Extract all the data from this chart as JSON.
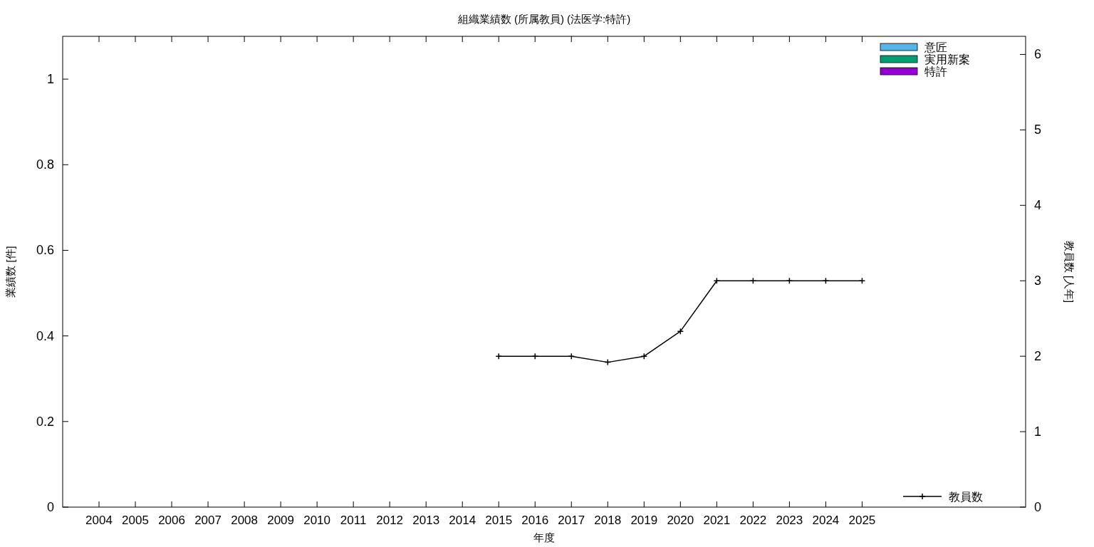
{
  "chart_data": {
    "type": "bar",
    "title": "組織業績数 (所属教員) (法医学:特許)",
    "xlabel": "年度",
    "ylabel": "業績数 [件]",
    "y2label": "教員数 [人年]",
    "x": [
      2004,
      2005,
      2006,
      2007,
      2008,
      2009,
      2010,
      2011,
      2012,
      2013,
      2014,
      2015,
      2016,
      2017,
      2018,
      2019,
      2020,
      2021,
      2022,
      2023,
      2024,
      2025
    ],
    "xlim": [
      2003,
      2029.5
    ],
    "xticks": [
      2004,
      2005,
      2006,
      2007,
      2008,
      2009,
      2010,
      2011,
      2012,
      2013,
      2014,
      2015,
      2016,
      2017,
      2018,
      2019,
      2020,
      2021,
      2022,
      2023,
      2024,
      2025
    ],
    "ylim": [
      0,
      1.1
    ],
    "yticks": [
      0,
      0.2,
      0.4,
      0.6,
      0.8,
      1
    ],
    "y2lim": [
      0,
      6.24
    ],
    "y2ticks": [
      0,
      1,
      2,
      3,
      4,
      5,
      6
    ],
    "legend": "right",
    "grid": false,
    "series": [
      {
        "name": "意匠",
        "color": "#56b4e9",
        "values": [
          0,
          0,
          0,
          0,
          0,
          0,
          0,
          0,
          0,
          0,
          0,
          0,
          0,
          0,
          0,
          0,
          0,
          0,
          0,
          0,
          0,
          0
        ]
      },
      {
        "name": "実用新案",
        "color": "#009e73",
        "values": [
          0,
          0,
          0,
          0,
          0,
          0,
          0,
          0,
          0,
          0,
          0,
          0,
          0,
          0,
          0,
          0,
          0,
          0,
          0,
          0,
          0,
          0
        ]
      },
      {
        "name": "特許",
        "color": "#9400d3",
        "values": [
          0,
          0,
          0,
          0,
          0,
          0,
          0,
          0,
          0,
          0,
          0,
          0,
          0,
          0,
          0,
          0,
          0,
          0,
          0,
          0,
          0,
          0
        ]
      },
      {
        "name": "教員数",
        "type": "line",
        "axis": "y2",
        "color": "#000000",
        "marker": "cross",
        "values": [
          null,
          null,
          null,
          null,
          null,
          null,
          null,
          null,
          null,
          null,
          null,
          2,
          2,
          2,
          1.92,
          2,
          2.33,
          3,
          3,
          3,
          3,
          3
        ]
      }
    ]
  }
}
